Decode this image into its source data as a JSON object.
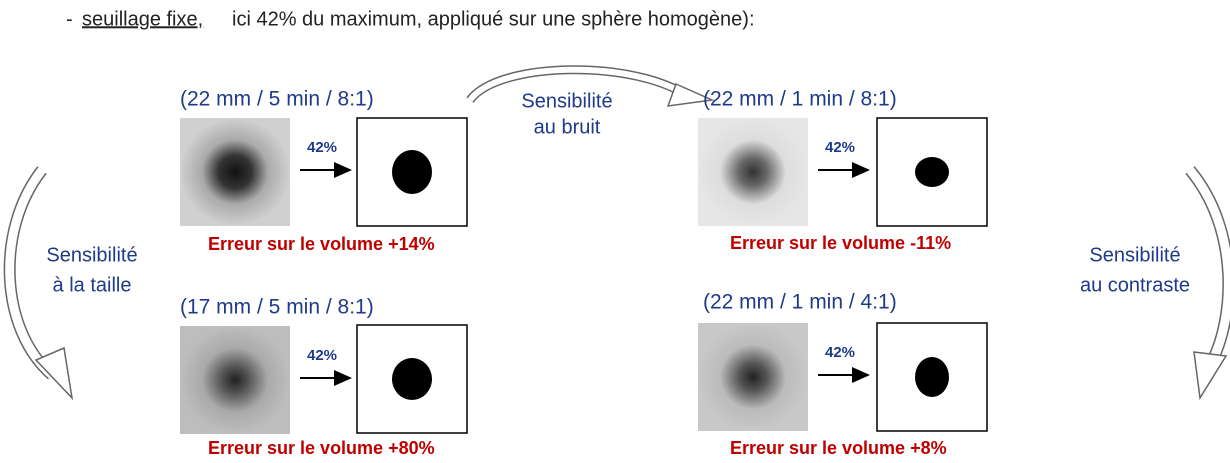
{
  "header": {
    "prefix": "-",
    "underlined": "seuillage fixe,",
    "rest": "ici 42% du maximum, appliqué sur une sphère homogène):"
  },
  "panels": [
    {
      "caption": "(22 mm / 5 min / 8:1)",
      "threshold": "42%",
      "error": "Erreur sur le volume +14%"
    },
    {
      "caption": "(17 mm / 5 min / 8:1)",
      "threshold": "42%",
      "error": "Erreur sur le volume +80%"
    },
    {
      "caption": "(22 mm / 1 min / 8:1)",
      "threshold": "42%",
      "error": "Erreur sur le volume -11%"
    },
    {
      "caption": "(22 mm / 1 min / 4:1)",
      "threshold": "42%",
      "error": "Erreur sur le volume +8%"
    }
  ],
  "labels": {
    "noise": [
      "Sensibilité",
      "au bruit"
    ],
    "size": [
      "Sensibilité",
      "à la taille"
    ],
    "contrast": [
      "Sensibilité",
      "au contraste"
    ]
  }
}
